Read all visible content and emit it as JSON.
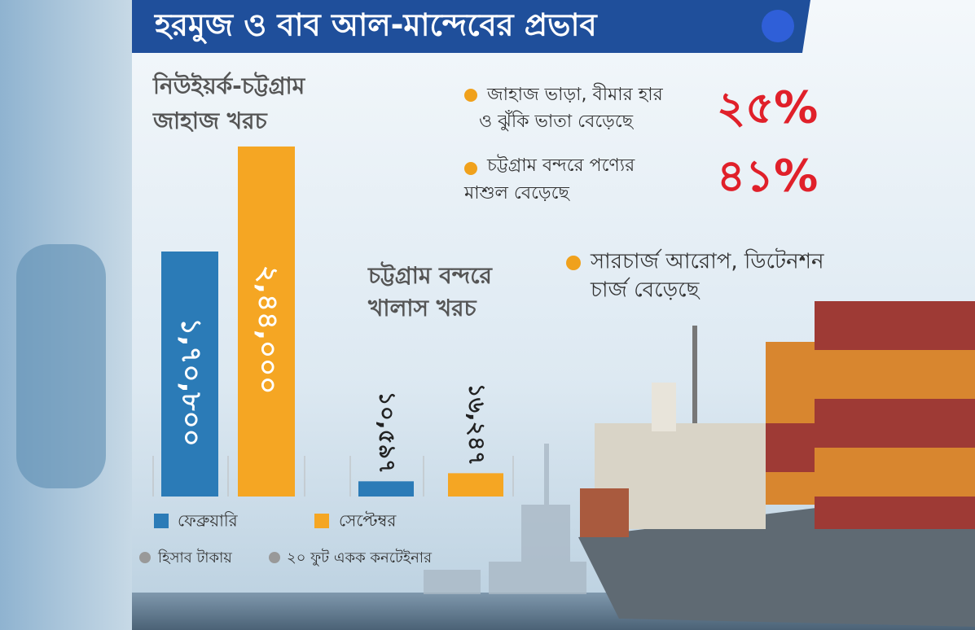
{
  "header": {
    "title": "হরমুজ ও বাব আল-মান্দেবের প্রভাব"
  },
  "chart_data": [
    {
      "type": "bar",
      "title": [
        "নিউইয়র্ক-চট্টগ্রাম",
        "জাহাজ খরচ"
      ],
      "series": [
        {
          "name": "ফেব্রুয়ারি",
          "color": "#2b7bb7",
          "values": [
            170800
          ],
          "value_labels": [
            "১,৭০,৮০০"
          ]
        },
        {
          "name": "সেপ্টেম্বর",
          "color": "#f5a623",
          "values": [
            244000
          ],
          "value_labels": [
            "২,৪৪,০০০"
          ]
        }
      ]
    },
    {
      "type": "bar",
      "title": [
        "চট্টগ্রাম বন্দরে",
        "খালাস খরচ"
      ],
      "series": [
        {
          "color": "#2b7bb7",
          "values": [
            10597
          ],
          "value_labels": [
            "১০,৫৯৭"
          ]
        },
        {
          "color": "#f5a623",
          "values": [
            16247
          ],
          "value_labels": [
            "১৬,২৪৭"
          ]
        }
      ]
    }
  ],
  "callouts": [
    {
      "lines": [
        "জাহাজ ভাড়া, বীমার হার",
        "ও ঝুঁকি ভাতা বেড়েছে"
      ],
      "value": 25,
      "value_label": "২৫%"
    },
    {
      "lines": [
        "চট্টগ্রাম বন্দরে পণ্যের",
        "মাশুল বেড়েছে"
      ],
      "value": 41,
      "value_label": "৪১%"
    },
    {
      "lines": [
        "সারচার্জ আরোপ, ডিটেনশন",
        "চার্জ বেড়েছে"
      ]
    }
  ],
  "notes": [
    "হিসাব টাকায়",
    "২০ ফুট একক কনটেইনার"
  ]
}
